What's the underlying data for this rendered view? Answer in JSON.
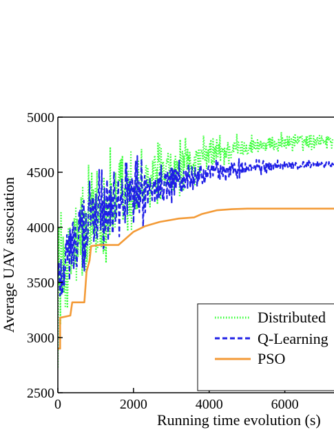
{
  "chart_data": {
    "type": "line",
    "xlabel": "Running time evolution (s)",
    "ylabel": "Average UAV association",
    "xlim": [
      0,
      7300
    ],
    "ylim": [
      2500,
      5000
    ],
    "x_ticks": [
      0,
      2000,
      4000,
      6000
    ],
    "y_ticks": [
      2500,
      3000,
      3500,
      4000,
      4500,
      5000
    ],
    "grid": false,
    "legend_position": "bottom-right",
    "series": [
      {
        "name": "Distributed",
        "color": "#33ff33",
        "style": "dotted",
        "trend": [
          [
            0,
            3400
          ],
          [
            200,
            3600
          ],
          [
            500,
            3800
          ],
          [
            800,
            3900
          ],
          [
            1000,
            4050
          ],
          [
            1500,
            4200
          ],
          [
            2000,
            4300
          ],
          [
            2500,
            4400
          ],
          [
            3000,
            4500
          ],
          [
            3500,
            4580
          ],
          [
            4000,
            4650
          ],
          [
            4500,
            4700
          ],
          [
            5000,
            4730
          ],
          [
            5500,
            4750
          ],
          [
            6000,
            4770
          ],
          [
            6500,
            4785
          ],
          [
            7000,
            4790
          ],
          [
            7300,
            4795
          ]
        ],
        "noise": [
          [
            0,
            700
          ],
          [
            1000,
            650
          ],
          [
            2000,
            450
          ],
          [
            3000,
            300
          ],
          [
            4000,
            200
          ],
          [
            5000,
            130
          ],
          [
            6000,
            100
          ],
          [
            7300,
            80
          ]
        ]
      },
      {
        "name": "Q-Learning",
        "color": "#1f1fe6",
        "style": "dashed",
        "trend": [
          [
            0,
            3500
          ],
          [
            200,
            3700
          ],
          [
            500,
            3900
          ],
          [
            800,
            4050
          ],
          [
            1000,
            4100
          ],
          [
            1500,
            4250
          ],
          [
            2000,
            4300
          ],
          [
            2500,
            4350
          ],
          [
            3000,
            4400
          ],
          [
            3500,
            4450
          ],
          [
            4000,
            4490
          ],
          [
            4500,
            4520
          ],
          [
            5000,
            4540
          ],
          [
            5500,
            4550
          ],
          [
            6000,
            4560
          ],
          [
            6500,
            4565
          ],
          [
            7000,
            4570
          ],
          [
            7300,
            4570
          ]
        ],
        "noise": [
          [
            0,
            500
          ],
          [
            1000,
            450
          ],
          [
            2000,
            350
          ],
          [
            3000,
            250
          ],
          [
            4000,
            150
          ],
          [
            5000,
            80
          ],
          [
            6000,
            50
          ],
          [
            7300,
            30
          ]
        ]
      },
      {
        "name": "PSO",
        "color": "#f39a36",
        "style": "solid",
        "points": [
          [
            0,
            2900
          ],
          [
            60,
            2900
          ],
          [
            60,
            3180
          ],
          [
            330,
            3200
          ],
          [
            380,
            3320
          ],
          [
            700,
            3320
          ],
          [
            760,
            3600
          ],
          [
            840,
            3700
          ],
          [
            880,
            3830
          ],
          [
            1100,
            3840
          ],
          [
            1600,
            3840
          ],
          [
            1800,
            3900
          ],
          [
            2000,
            3960
          ],
          [
            2300,
            4010
          ],
          [
            2700,
            4050
          ],
          [
            3200,
            4080
          ],
          [
            3600,
            4090
          ],
          [
            3800,
            4120
          ],
          [
            4200,
            4155
          ],
          [
            4600,
            4165
          ],
          [
            5000,
            4170
          ],
          [
            7300,
            4170
          ]
        ]
      }
    ]
  }
}
